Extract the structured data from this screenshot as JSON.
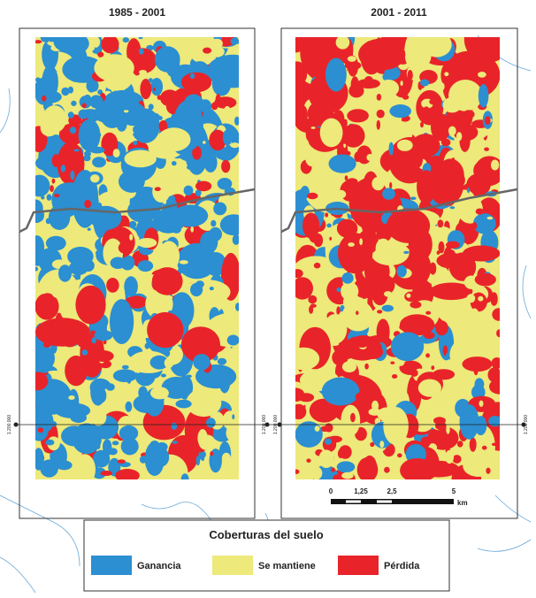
{
  "panels": [
    {
      "title": "1985 - 2001",
      "coord_left": "1.200.000",
      "coord_right": "1.200.000"
    },
    {
      "title": "2001 - 2011",
      "coord_left": "1.200.000",
      "coord_right": "1.200.000"
    }
  ],
  "scale_bar": {
    "labels": [
      "0",
      "1,25",
      "2,5",
      "5"
    ],
    "unit": "km"
  },
  "legend": {
    "title": "Coberturas del suelo",
    "items": [
      {
        "label": "Ganancia",
        "color": "#2b8fd1"
      },
      {
        "label": "Se mantiene",
        "color": "#ede97a"
      },
      {
        "label": "Pérdida",
        "color": "#e8242a"
      }
    ]
  }
}
